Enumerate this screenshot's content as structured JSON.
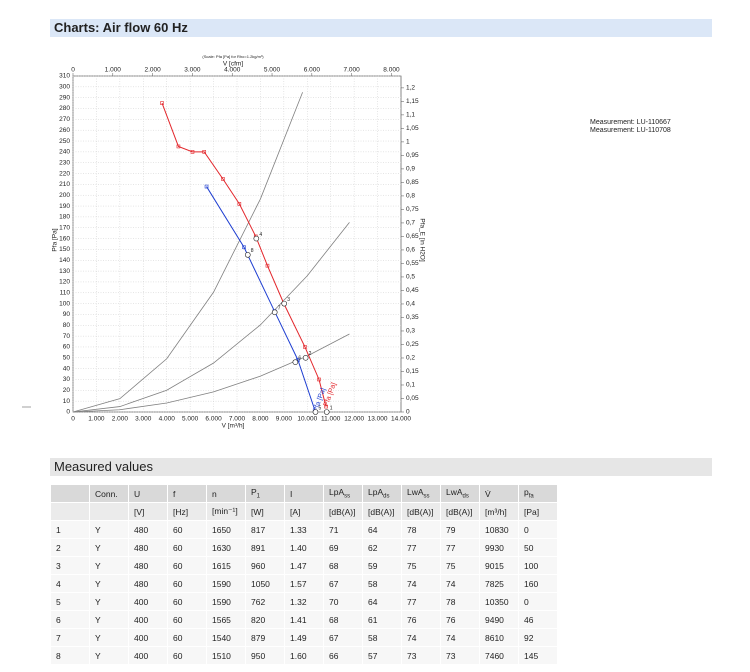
{
  "header": {
    "title": "Charts: Air flow 60 Hz"
  },
  "chart": {
    "type": "line",
    "note": "(Scale: Pfa [Pa] for Rho=1.2kg/m³)",
    "x_label": "V [m³/h]",
    "top_x_label": "V [cfm]",
    "y_label": "Pfa [Pa]",
    "y2_label": "Pfa_E [in H2O]",
    "xlim": [
      0,
      14000
    ],
    "top_xlim": [
      0,
      8240
    ],
    "ylim": [
      0,
      310
    ],
    "y2lim": [
      0,
      1.244
    ],
    "grid": true,
    "xticks": [
      0,
      {
        "value": 1000,
        "label": "1.000"
      },
      {
        "value": 2000,
        "label": "2.000"
      },
      {
        "value": 3000,
        "label": "3.000"
      },
      {
        "value": 4000,
        "label": "4.000"
      },
      {
        "value": 5000,
        "label": "5.000"
      },
      {
        "value": 6000,
        "label": "6.000"
      },
      {
        "value": 7000,
        "label": "7.000"
      },
      {
        "value": 8000,
        "label": "8.000"
      },
      {
        "value": 9000,
        "label": "9.000"
      },
      {
        "value": 10000,
        "label": "10.000"
      },
      {
        "value": 11000,
        "label": "11.000"
      },
      {
        "value": 12000,
        "label": "12.000"
      },
      {
        "value": 13000,
        "label": "13.000"
      },
      {
        "value": 14000,
        "label": "14.000"
      }
    ],
    "top_xticks": [
      0,
      {
        "value": 1000,
        "label": "1.000"
      },
      {
        "value": 2000,
        "label": "2.000"
      },
      {
        "value": 3000,
        "label": "3.000"
      },
      {
        "value": 4000,
        "label": "4.000"
      },
      {
        "value": 5000,
        "label": "5.000"
      },
      {
        "value": 6000,
        "label": "6.000"
      },
      {
        "value": 7000,
        "label": "7.000"
      },
      {
        "value": 8000,
        "label": "8.000"
      }
    ],
    "yticks": [
      0,
      10,
      20,
      30,
      40,
      50,
      60,
      70,
      80,
      90,
      100,
      110,
      120,
      130,
      140,
      150,
      160,
      170,
      180,
      190,
      200,
      210,
      220,
      230,
      240,
      250,
      260,
      270,
      280,
      290,
      300,
      310
    ],
    "y2ticks": [
      0,
      {
        "value": 0.05,
        "label": "0,05"
      },
      {
        "value": 0.1,
        "label": "0,1"
      },
      {
        "value": 0.15,
        "label": "0,15"
      },
      {
        "value": 0.2,
        "label": "0,2"
      },
      {
        "value": 0.25,
        "label": "0,25"
      },
      {
        "value": 0.3,
        "label": "0,3"
      },
      {
        "value": 0.35,
        "label": "0,35"
      },
      {
        "value": 0.4,
        "label": "0,4"
      },
      {
        "value": 0.45,
        "label": "0,45"
      },
      {
        "value": 0.5,
        "label": "0,5"
      },
      {
        "value": 0.55,
        "label": "0,55"
      },
      {
        "value": 0.6,
        "label": "0,6"
      },
      {
        "value": 0.65,
        "label": "0,65"
      },
      {
        "value": 0.7,
        "label": "0,7"
      },
      {
        "value": 0.75,
        "label": "0,75"
      },
      {
        "value": 0.8,
        "label": "0,8"
      },
      {
        "value": 0.85,
        "label": "0,85"
      },
      {
        "value": 0.9,
        "label": "0,9"
      },
      {
        "value": 0.95,
        "label": "0,95"
      },
      1,
      {
        "value": 1.05,
        "label": "1,05"
      },
      {
        "value": 1.1,
        "label": "1,1"
      },
      {
        "value": 1.15,
        "label": "1,15"
      },
      {
        "value": 1.2,
        "label": "1,2"
      }
    ],
    "series": [
      {
        "name": "Pfa [Pa]",
        "color": "#e3262b",
        "x": [
          3800,
          4500,
          5100,
          5600,
          6400,
          7100,
          7800,
          8300,
          9000,
          9900,
          10500,
          10800
        ],
        "values": [
          285,
          245,
          240,
          240,
          215,
          192,
          162,
          135,
          100,
          60,
          30,
          5
        ]
      },
      {
        "name": "Pfa [Pa]",
        "color": "#1f3fd1",
        "x": [
          5700,
          7300,
          8600,
          9600,
          10350
        ],
        "values": [
          208,
          152,
          93,
          48,
          0
        ]
      }
    ],
    "system_curves": {
      "color": "#808080",
      "lines": [
        {
          "x": [
            0,
            2000,
            4000,
            6000,
            8000,
            9800
          ],
          "values": [
            0,
            12.3,
            49.1,
            110.6,
            196.6,
            295
          ]
        },
        {
          "x": [
            0,
            2000,
            4000,
            6000,
            8000,
            10000,
            11800
          ],
          "values": [
            0,
            5,
            20.1,
            45.2,
            80.4,
            125.7,
            175
          ]
        },
        {
          "x": [
            0,
            2000,
            4000,
            6000,
            8000,
            10000,
            11800
          ],
          "values": [
            0,
            2.1,
            8.3,
            18.6,
            33.1,
            51.7,
            72
          ]
        }
      ]
    },
    "operating_points": {
      "labels": [
        "1",
        "2",
        "3",
        "4",
        "5",
        "6",
        "7",
        "8"
      ],
      "x": [
        10830,
        9930,
        9015,
        7825,
        10350,
        9490,
        8610,
        7460
      ],
      "values": [
        0,
        50,
        100,
        160,
        0,
        46,
        92,
        145
      ]
    }
  },
  "measurement_notes": [
    "Measurement: LU-110667",
    "Measurement: LU-110708"
  ],
  "table": {
    "title": "Measured values",
    "columns": [
      {
        "text": ""
      },
      {
        "text": "Conn."
      },
      {
        "text": "U"
      },
      {
        "text": "f"
      },
      {
        "text": "n"
      },
      {
        "text": "P",
        "sub": "1"
      },
      {
        "text": "I"
      },
      {
        "text": "LpA",
        "sub": "ss"
      },
      {
        "text": "LpA",
        "sub": "ds"
      },
      {
        "text": "LwA",
        "sub": "ss"
      },
      {
        "text": "LwA",
        "sub": "ds"
      },
      {
        "text": "V̇"
      },
      {
        "text": "p",
        "sub": "fa"
      }
    ],
    "units": [
      "",
      "",
      "[V]",
      "[Hz]",
      "[min⁻¹]",
      "[W]",
      "[A]",
      "[dB(A)]",
      "[dB(A)]",
      "[dB(A)]",
      "[dB(A)]",
      "[m³/h]",
      "[Pa]"
    ],
    "rows": [
      [
        "1",
        "Y",
        "480",
        "60",
        "1650",
        "817",
        "1.33",
        "71",
        "64",
        "78",
        "79",
        "10830",
        "0"
      ],
      [
        "2",
        "Y",
        "480",
        "60",
        "1630",
        "891",
        "1.40",
        "69",
        "62",
        "77",
        "77",
        "9930",
        "50"
      ],
      [
        "3",
        "Y",
        "480",
        "60",
        "1615",
        "960",
        "1.47",
        "68",
        "59",
        "75",
        "75",
        "9015",
        "100"
      ],
      [
        "4",
        "Y",
        "480",
        "60",
        "1590",
        "1050",
        "1.57",
        "67",
        "58",
        "74",
        "74",
        "7825",
        "160"
      ],
      [
        "5",
        "Y",
        "400",
        "60",
        "1590",
        "762",
        "1.32",
        "70",
        "64",
        "77",
        "78",
        "10350",
        "0"
      ],
      [
        "6",
        "Y",
        "400",
        "60",
        "1565",
        "820",
        "1.41",
        "68",
        "61",
        "76",
        "76",
        "9490",
        "46"
      ],
      [
        "7",
        "Y",
        "400",
        "60",
        "1540",
        "879",
        "1.49",
        "67",
        "58",
        "74",
        "74",
        "8610",
        "92"
      ],
      [
        "8",
        "Y",
        "400",
        "60",
        "1510",
        "950",
        "1.60",
        "66",
        "57",
        "73",
        "73",
        "7460",
        "145"
      ]
    ]
  }
}
